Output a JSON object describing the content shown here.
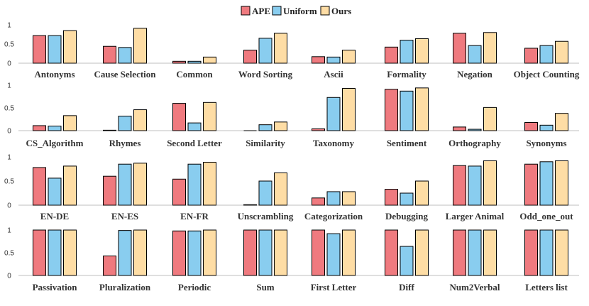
{
  "chart_data": {
    "type": "bar",
    "legend": [
      {
        "name": "APE",
        "color": "#ef7a7f"
      },
      {
        "name": "Uniform",
        "color": "#89cdef"
      },
      {
        "name": "Ours",
        "color": "#fedda5"
      }
    ],
    "legend_position": "top-center",
    "panels": [
      {
        "yticks": [
          "1",
          "0.5",
          "0"
        ],
        "ylim": [
          0,
          1
        ],
        "categories": [
          "Antonyms",
          "Cause Selection",
          "Common",
          "Word Sorting",
          "Ascii",
          "Formality",
          "Negation",
          "Object Counting"
        ],
        "series": [
          {
            "name": "APE",
            "values": [
              0.72,
              0.44,
              0.05,
              0.34,
              0.17,
              0.42,
              0.78,
              0.39
            ]
          },
          {
            "name": "Uniform",
            "values": [
              0.72,
              0.41,
              0.05,
              0.65,
              0.16,
              0.6,
              0.46,
              0.46
            ]
          },
          {
            "name": "Ours",
            "values": [
              0.85,
              0.91,
              0.16,
              0.78,
              0.34,
              0.64,
              0.8,
              0.57
            ]
          }
        ]
      },
      {
        "yticks": [
          "1",
          "0.5",
          "0"
        ],
        "ylim": [
          0,
          1
        ],
        "categories": [
          "CS_Algorithm",
          "Rhymes",
          "Second Letter",
          "Similarity",
          "Taxonomy",
          "Sentiment",
          "Orthography",
          "Synonyms"
        ],
        "series": [
          {
            "name": "APE",
            "values": [
              0.11,
              0.01,
              0.6,
              0.0,
              0.04,
              0.91,
              0.08,
              0.18
            ]
          },
          {
            "name": "Uniform",
            "values": [
              0.1,
              0.32,
              0.17,
              0.13,
              0.73,
              0.87,
              0.03,
              0.12
            ]
          },
          {
            "name": "Ours",
            "values": [
              0.33,
              0.46,
              0.62,
              0.19,
              0.93,
              0.94,
              0.51,
              0.38
            ]
          }
        ]
      },
      {
        "yticks": [
          "1",
          "0.5",
          "0"
        ],
        "ylim": [
          0,
          1
        ],
        "categories": [
          "EN-DE",
          "EN-ES",
          "EN-FR",
          "Unscrambling",
          "Categorization",
          "Debugging",
          "Larger Animal",
          "Odd_one_out"
        ],
        "series": [
          {
            "name": "APE",
            "values": [
              0.78,
              0.6,
              0.54,
              0.01,
              0.15,
              0.33,
              0.82,
              0.85
            ]
          },
          {
            "name": "Uniform",
            "values": [
              0.56,
              0.85,
              0.85,
              0.5,
              0.28,
              0.25,
              0.81,
              0.9
            ]
          },
          {
            "name": "Ours",
            "values": [
              0.81,
              0.87,
              0.89,
              0.67,
              0.28,
              0.5,
              0.92,
              0.92
            ]
          }
        ]
      },
      {
        "yticks": [
          "1",
          "0.5",
          "0"
        ],
        "ylim": [
          0,
          1
        ],
        "categories": [
          "Passivation",
          "Pluralization",
          "Periodic",
          "Sum",
          "First Letter",
          "Diff",
          "Num2Verbal",
          "Letters list"
        ],
        "series": [
          {
            "name": "APE",
            "values": [
              1.0,
              0.43,
              0.98,
              1.0,
              1.0,
              1.0,
              1.0,
              1.0
            ]
          },
          {
            "name": "Uniform",
            "values": [
              1.0,
              0.99,
              0.98,
              1.0,
              0.92,
              0.64,
              1.0,
              1.0
            ]
          },
          {
            "name": "Ours",
            "values": [
              1.0,
              1.0,
              1.0,
              1.0,
              1.0,
              1.0,
              1.0,
              1.0
            ]
          }
        ]
      }
    ]
  }
}
